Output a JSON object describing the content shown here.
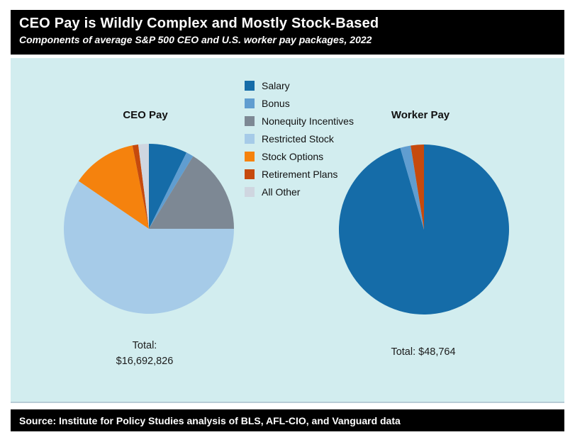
{
  "header": {
    "title": "CEO Pay is Wildly Complex and Mostly Stock-Based",
    "subtitle": "Components of average S&P 500 CEO and U.S. worker pay packages, 2022"
  },
  "footer": {
    "source": "Source: Institute for Policy Studies analysis of BLS, AFL-CIO, and Vanguard data"
  },
  "colors": {
    "panel_background": "#D2EDEF",
    "header_background": "#000000",
    "palette": {
      "Salary": "#156CA8",
      "Bonus": "#609DD0",
      "Nonequity Incentives": "#7D8894",
      "Restricted Stock": "#A6CBE8",
      "Stock Options": "#F5820D",
      "Retirement Plans": "#C64A0D",
      "All Other": "#CFD6E0"
    }
  },
  "legend": {
    "position": "top-center-between-pies",
    "items": [
      "Salary",
      "Bonus",
      "Nonequity Incentives",
      "Restricted Stock",
      "Stock Options",
      "Retirement Plans",
      "All Other"
    ]
  },
  "chart_data": [
    {
      "type": "pie",
      "title": "CEO Pay",
      "start_angle": "12-oclock",
      "direction": "clockwise",
      "categories": [
        "Salary",
        "Bonus",
        "Nonequity Incentives",
        "Restricted Stock",
        "Stock Options",
        "Retirement Plans",
        "All Other"
      ],
      "percent_estimates": [
        7.3,
        1.4,
        16.3,
        59.5,
        12.4,
        1.1,
        2.0
      ],
      "total_usd": 16692826,
      "total_lines": [
        "Total:",
        "$16,692,826"
      ]
    },
    {
      "type": "pie",
      "title": "Worker Pay",
      "start_angle": "12-oclock",
      "direction": "clockwise",
      "categories": [
        "Salary",
        "Bonus",
        "Retirement Plans"
      ],
      "percent_estimates": [
        95.5,
        2.0,
        2.5
      ],
      "total_usd": 48764,
      "total_lines": [
        "Total: $48,764"
      ]
    }
  ]
}
